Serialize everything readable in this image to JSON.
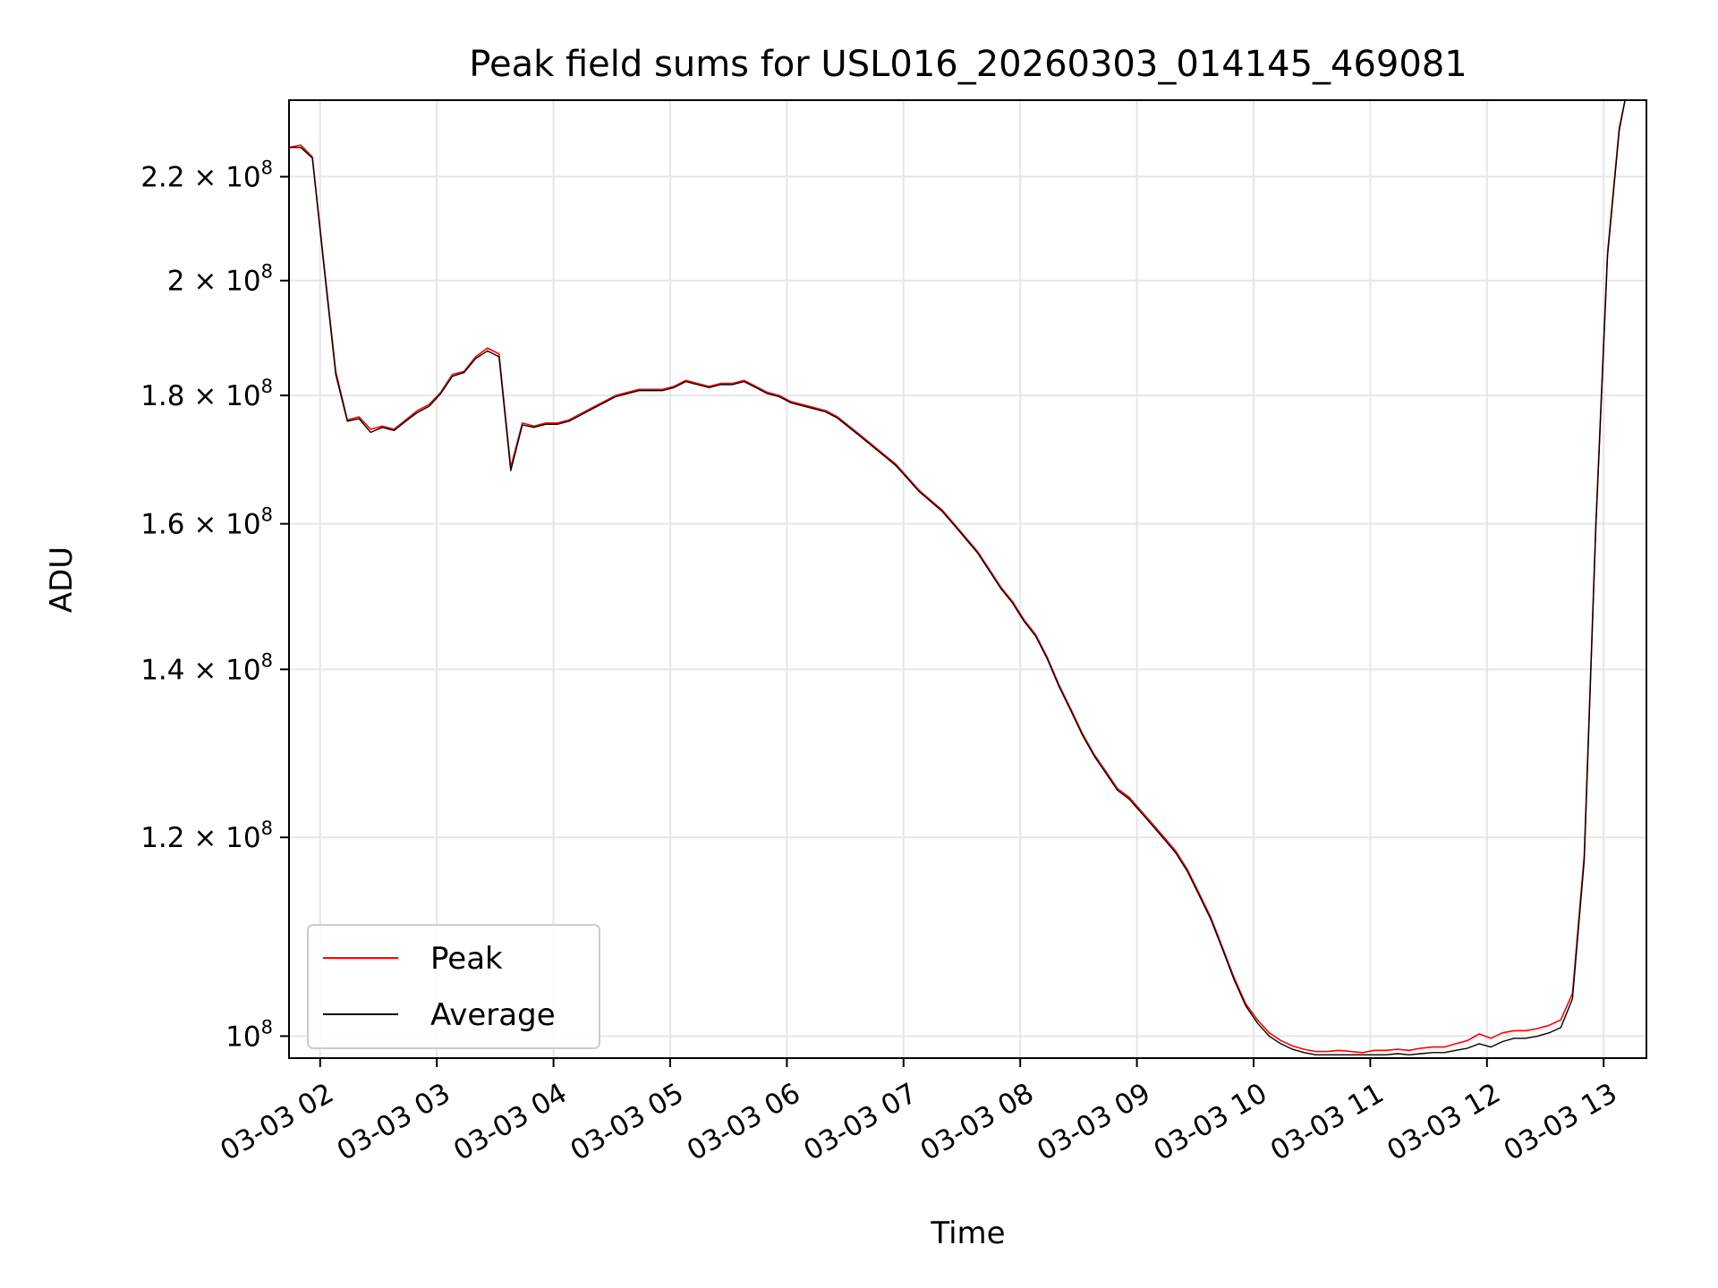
{
  "chart_data": {
    "type": "line",
    "title": "Peak field sums for USL016_20260303_014145_469081",
    "xlabel": "Time",
    "ylabel": "ADU",
    "y_scale": "log",
    "ylim": [
      98000000,
      236000000
    ],
    "xlim": [
      "03-03 01:44",
      "03-03 13:22"
    ],
    "grid": true,
    "legend": {
      "placement": "lower-left",
      "entries": [
        "Peak",
        "Average"
      ]
    },
    "x_ticks": [
      "03-03 02",
      "03-03 03",
      "03-03 04",
      "03-03 05",
      "03-03 06",
      "03-03 07",
      "03-03 08",
      "03-03 09",
      "03-03 10",
      "03-03 11",
      "03-03 12",
      "03-03 13"
    ],
    "y_ticks": [
      {
        "value": 100000000,
        "mantissa": "",
        "exp": "8"
      },
      {
        "value": 120000000,
        "mantissa": "1.2",
        "exp": "8"
      },
      {
        "value": 140000000,
        "mantissa": "1.4",
        "exp": "8"
      },
      {
        "value": 160000000,
        "mantissa": "1.6",
        "exp": "8"
      },
      {
        "value": 180000000,
        "mantissa": "1.8",
        "exp": "8"
      },
      {
        "value": 200000000,
        "mantissa": "2",
        "exp": "8"
      },
      {
        "value": 220000000,
        "mantissa": "2.2",
        "exp": "8"
      }
    ],
    "x": [
      "03-03 01:44",
      "03-03 01:50",
      "03-03 01:56",
      "03-03 02:02",
      "03-03 02:08",
      "03-03 02:14",
      "03-03 02:20",
      "03-03 02:26",
      "03-03 02:32",
      "03-03 02:38",
      "03-03 02:44",
      "03-03 02:50",
      "03-03 02:56",
      "03-03 03:02",
      "03-03 03:08",
      "03-03 03:14",
      "03-03 03:20",
      "03-03 03:26",
      "03-03 03:32",
      "03-03 03:38",
      "03-03 03:44",
      "03-03 03:50",
      "03-03 03:56",
      "03-03 04:02",
      "03-03 04:08",
      "03-03 04:14",
      "03-03 04:20",
      "03-03 04:26",
      "03-03 04:32",
      "03-03 04:38",
      "03-03 04:44",
      "03-03 04:50",
      "03-03 04:56",
      "03-03 05:02",
      "03-03 05:08",
      "03-03 05:14",
      "03-03 05:20",
      "03-03 05:26",
      "03-03 05:32",
      "03-03 05:38",
      "03-03 05:44",
      "03-03 05:50",
      "03-03 05:56",
      "03-03 06:02",
      "03-03 06:08",
      "03-03 06:14",
      "03-03 06:20",
      "03-03 06:26",
      "03-03 06:32",
      "03-03 06:38",
      "03-03 06:44",
      "03-03 06:50",
      "03-03 06:56",
      "03-03 07:02",
      "03-03 07:08",
      "03-03 07:14",
      "03-03 07:20",
      "03-03 07:26",
      "03-03 07:32",
      "03-03 07:38",
      "03-03 07:44",
      "03-03 07:50",
      "03-03 07:56",
      "03-03 08:02",
      "03-03 08:08",
      "03-03 08:14",
      "03-03 08:20",
      "03-03 08:26",
      "03-03 08:32",
      "03-03 08:38",
      "03-03 08:44",
      "03-03 08:50",
      "03-03 08:56",
      "03-03 09:02",
      "03-03 09:08",
      "03-03 09:14",
      "03-03 09:20",
      "03-03 09:26",
      "03-03 09:32",
      "03-03 09:38",
      "03-03 09:44",
      "03-03 09:50",
      "03-03 09:56",
      "03-03 10:02",
      "03-03 10:08",
      "03-03 10:14",
      "03-03 10:20",
      "03-03 10:26",
      "03-03 10:32",
      "03-03 10:38",
      "03-03 10:44",
      "03-03 10:50",
      "03-03 10:56",
      "03-03 11:02",
      "03-03 11:08",
      "03-03 11:14",
      "03-03 11:20",
      "03-03 11:26",
      "03-03 11:32",
      "03-03 11:38",
      "03-03 11:44",
      "03-03 11:50",
      "03-03 11:56",
      "03-03 12:02",
      "03-03 12:08",
      "03-03 12:14",
      "03-03 12:20",
      "03-03 12:26",
      "03-03 12:32",
      "03-03 12:38",
      "03-03 12:44",
      "03-03 12:50",
      "03-03 12:56",
      "03-03 13:02",
      "03-03 13:08",
      "03-03 13:11"
    ],
    "series": [
      {
        "name": "Peak",
        "color": "#ff0000",
        "values": [
          226000000,
          226500000,
          224000000,
          203000000,
          184000000,
          176000000,
          176500000,
          174500000,
          175000000,
          174500000,
          176000000,
          177500000,
          178500000,
          180500000,
          183500000,
          184000000,
          186500000,
          188000000,
          187000000,
          168500000,
          175500000,
          175000000,
          175500000,
          175500000,
          176000000,
          177000000,
          178000000,
          179000000,
          180000000,
          180500000,
          181000000,
          181000000,
          181000000,
          181500000,
          182500000,
          182000000,
          181500000,
          182000000,
          182000000,
          182500000,
          181500000,
          180500000,
          180000000,
          179000000,
          178500000,
          178000000,
          177500000,
          176500000,
          175000000,
          173500000,
          172000000,
          170500000,
          169000000,
          167000000,
          165000000,
          163500000,
          162000000,
          160000000,
          158000000,
          156000000,
          153500000,
          151000000,
          149000000,
          146500000,
          144500000,
          141500000,
          138000000,
          135000000,
          132000000,
          129500000,
          127500000,
          125500000,
          124500000,
          123000000,
          121500000,
          120000000,
          118500000,
          116500000,
          114000000,
          111500000,
          108500000,
          105500000,
          103000000,
          101500000,
          100300000,
          99600000,
          99100000,
          98800000,
          98600000,
          98600000,
          98700000,
          98600000,
          98500000,
          98700000,
          98700000,
          98800000,
          98700000,
          98900000,
          99000000,
          99000000,
          99300000,
          99600000,
          100200000,
          99800000,
          100300000,
          100500000,
          100500000,
          100700000,
          101000000,
          101500000,
          104000000,
          118000000,
          160000000,
          205000000,
          230000000,
          236000000
        ]
      },
      {
        "name": "Average",
        "color": "#000000",
        "values": [
          226000000,
          226000000,
          223800000,
          202500000,
          183500000,
          175800000,
          176200000,
          174000000,
          174800000,
          174300000,
          175800000,
          177200000,
          178200000,
          180300000,
          183200000,
          183800000,
          186200000,
          187500000,
          186500000,
          168000000,
          175200000,
          174800000,
          175300000,
          175300000,
          175800000,
          176800000,
          177800000,
          178800000,
          179800000,
          180300000,
          180800000,
          180800000,
          180800000,
          181300000,
          182300000,
          181800000,
          181300000,
          181800000,
          181800000,
          182300000,
          181300000,
          180300000,
          179800000,
          178800000,
          178300000,
          177800000,
          177300000,
          176300000,
          174800000,
          173300000,
          171800000,
          170300000,
          168800000,
          166800000,
          164800000,
          163300000,
          161800000,
          159800000,
          157800000,
          155800000,
          153300000,
          150800000,
          148800000,
          146300000,
          144300000,
          141300000,
          137800000,
          134800000,
          131800000,
          129300000,
          127300000,
          125300000,
          124300000,
          122800000,
          121300000,
          119800000,
          118300000,
          116300000,
          113800000,
          111300000,
          108300000,
          105300000,
          102800000,
          101200000,
          100000000,
          99300000,
          98800000,
          98500000,
          98300000,
          98300000,
          98300000,
          98300000,
          98300000,
          98300000,
          98300000,
          98400000,
          98300000,
          98400000,
          98500000,
          98500000,
          98700000,
          98900000,
          99300000,
          99000000,
          99500000,
          99800000,
          99800000,
          100000000,
          100300000,
          100800000,
          103500000,
          117500000,
          159500000,
          204500000,
          229500000,
          236000000
        ]
      }
    ]
  }
}
